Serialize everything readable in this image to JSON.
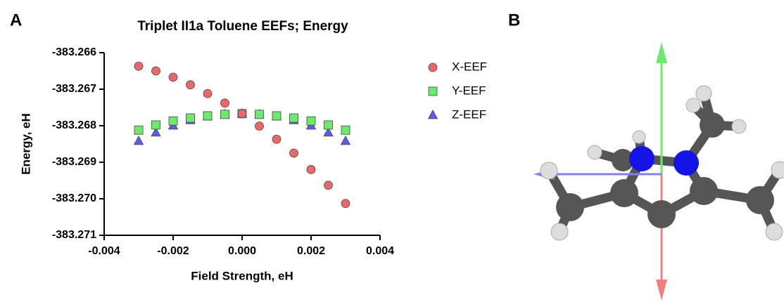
{
  "panel_labels": [
    "A",
    "B"
  ],
  "chart_data": {
    "type": "scatter",
    "title": "Triplet II1a Toluene EEFs; Energy",
    "x_label": "Field Strength, eH",
    "y_label": "Energy, eH",
    "x": [
      -0.003,
      -0.0025,
      -0.002,
      -0.0015,
      -0.001,
      -0.0005,
      0,
      0.0005,
      0.001,
      0.0015,
      0.002,
      0.0025,
      0.003
    ],
    "series": [
      {
        "name": "X-EEF",
        "color": "#e8696b",
        "marker": "circle",
        "values": [
          -383.26637,
          -383.2665,
          -383.26667,
          -383.26688,
          -383.26712,
          -383.26738,
          -383.26767,
          -383.26801,
          -383.26837,
          -383.26875,
          -383.2692,
          -383.26963,
          -383.27013
        ]
      },
      {
        "name": "Y-EEF",
        "color": "#6ee86e",
        "marker": "square",
        "values": [
          -383.26812,
          -383.26798,
          -383.26787,
          -383.26779,
          -383.26773,
          -383.26769,
          -383.26767,
          -383.26769,
          -383.26773,
          -383.26779,
          -383.26787,
          -383.26798,
          -383.26812
        ]
      },
      {
        "name": "Z-EEF",
        "color": "#5c5ce6",
        "marker": "triangle",
        "values": [
          -383.26842,
          -383.26819,
          -383.268,
          -383.26785,
          -383.26775,
          -383.26769,
          -383.26767,
          -383.26769,
          -383.26775,
          -383.26785,
          -383.268,
          -383.26819,
          -383.26842
        ]
      }
    ],
    "xlim": [
      -0.004,
      0.004
    ],
    "xticks": [
      -0.004,
      -0.002,
      {
        "value": 0,
        "label": "0.000"
      },
      0.002,
      0.004
    ],
    "ylim": [
      -383.271,
      -383.266
    ],
    "yticks": [
      -383.266,
      -383.267,
      -383.268,
      -383.269,
      {
        "value": -383.27,
        "label": "-383.270"
      },
      -383.271
    ],
    "legend": "right"
  }
}
